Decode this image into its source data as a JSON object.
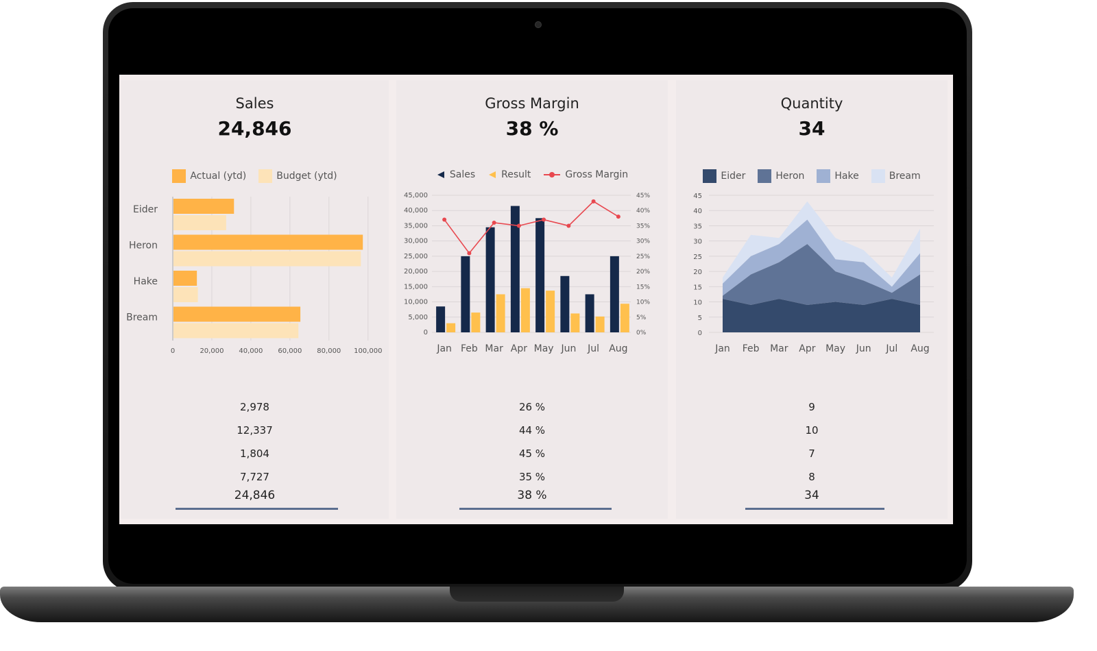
{
  "panels": {
    "sales": {
      "title": "Sales",
      "kpi": "24,846",
      "rows": [
        "2,978",
        "12,337",
        "1,804",
        "7,727"
      ],
      "total": "24,846",
      "legend": [
        "Actual (ytd)",
        "Budget (ytd)"
      ]
    },
    "margin": {
      "title": "Gross Margin",
      "kpi": "38 %",
      "rows": [
        "26 %",
        "44 %",
        "45 %",
        "35 %"
      ],
      "total": "38 %",
      "legend": [
        "Sales",
        "Result",
        "Gross Margin"
      ]
    },
    "quantity": {
      "title": "Quantity",
      "kpi": "34",
      "rows": [
        "9",
        "10",
        "7",
        "8"
      ],
      "total": "34",
      "legend": [
        "Eider",
        "Heron",
        "Hake",
        "Bream"
      ]
    }
  },
  "colors": {
    "actual": "#ffb347",
    "budget": "#fde3b8",
    "sales_bar": "#15294a",
    "result_bar": "#ffc04d",
    "margin_line": "#e8484f",
    "eider": "#344a6c",
    "heron": "#5f7396",
    "hake": "#9fb1d3",
    "bream": "#d9e2f3"
  },
  "chart_data": [
    {
      "type": "bar",
      "orientation": "horizontal",
      "categories": [
        "Eider",
        "Heron",
        "Hake",
        "Bream"
      ],
      "series": [
        {
          "name": "Actual (ytd)",
          "values": [
            31000,
            97000,
            12000,
            65000
          ]
        },
        {
          "name": "Budget (ytd)",
          "values": [
            27000,
            96000,
            12500,
            64000
          ]
        }
      ],
      "xlim": [
        0,
        105000
      ],
      "xticks": [
        "0",
        "20,000",
        "40,000",
        "60,000",
        "80,000",
        "100,000"
      ],
      "grid": true,
      "legend": "top-center"
    },
    {
      "type": "bar",
      "categories": [
        "Jan",
        "Feb",
        "Mar",
        "Apr",
        "May",
        "Jun",
        "Jul",
        "Aug"
      ],
      "series": [
        {
          "name": "Sales",
          "values": [
            8500,
            25000,
            34500,
            41500,
            37500,
            18500,
            12500,
            25000
          ]
        },
        {
          "name": "Result",
          "values": [
            3000,
            6500,
            12500,
            14500,
            13700,
            6200,
            5200,
            9400
          ]
        },
        {
          "name": "Gross Margin",
          "type": "line",
          "axis": "right",
          "values": [
            37,
            26,
            36,
            35,
            37,
            35,
            43,
            38
          ]
        }
      ],
      "ylim": [
        0,
        45000
      ],
      "yticks": [
        "0",
        "5,000",
        "10,000",
        "15,000",
        "20,000",
        "25,000",
        "30,000",
        "35,000",
        "40,000",
        "45,000"
      ],
      "y2ticks": [
        "0%",
        "5%",
        "10%",
        "15%",
        "20%",
        "25%",
        "30%",
        "35%",
        "40%",
        "45%"
      ],
      "grid": true,
      "legend": "top-center"
    },
    {
      "type": "area",
      "stacked": true,
      "categories": [
        "Jan",
        "Feb",
        "Mar",
        "Apr",
        "May",
        "Jun",
        "Jul",
        "Aug"
      ],
      "series": [
        {
          "name": "Eider",
          "values": [
            11,
            9,
            11,
            9,
            10,
            9,
            11,
            9
          ]
        },
        {
          "name": "Heron",
          "values": [
            1,
            10,
            12,
            20,
            10,
            8,
            2,
            10
          ]
        },
        {
          "name": "Hake",
          "values": [
            4,
            6,
            6,
            8,
            4,
            6,
            2,
            7
          ]
        },
        {
          "name": "Bream",
          "values": [
            2,
            7,
            2,
            6,
            7,
            4,
            3,
            8
          ]
        }
      ],
      "ylim": [
        0,
        45
      ],
      "yticks": [
        "0",
        "5",
        "10",
        "15",
        "20",
        "25",
        "30",
        "35",
        "40",
        "45"
      ],
      "grid": true,
      "legend": "top-center"
    }
  ]
}
